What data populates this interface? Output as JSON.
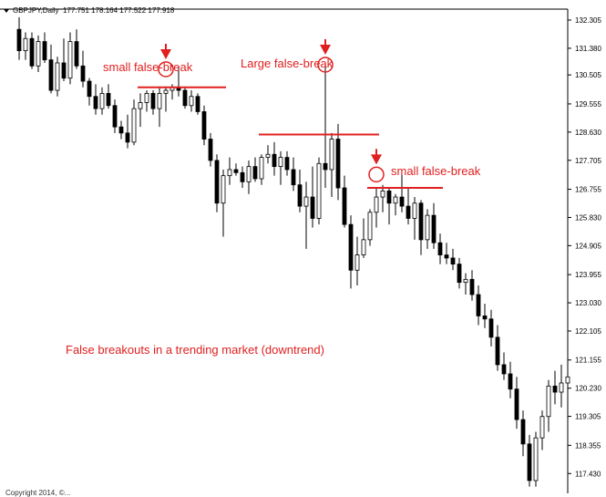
{
  "header": {
    "symbol": "GBPJPY,Daily",
    "ohlc": "177.751 178.164 177.522 177.918"
  },
  "annotations": {
    "small_false_break_1": "small false-break",
    "large_false_break": "Large false-break",
    "small_false_break_2": "small false-break",
    "caption": "False breakouts in a trending market (downtrend)"
  },
  "copyright": "Copyright 2014, ©...",
  "chart_data": {
    "type": "candlestick",
    "y_ticks": [
      "132.305",
      "131.380",
      "130.505",
      "129.555",
      "128.630",
      "127.705",
      "126.755",
      "125.830",
      "124.905",
      "123.955",
      "123.030",
      "122.105",
      "121.155",
      "120.230",
      "119.305",
      "118.355",
      "117.430"
    ],
    "ylim": [
      117.0,
      132.7
    ],
    "colors": {
      "annotation": "#e02020",
      "bull": "#ffffff",
      "bear": "#000000",
      "axis": "#000000"
    },
    "candles": [
      [
        132.0,
        132.4,
        131.0,
        131.3
      ],
      [
        131.3,
        131.9,
        131.0,
        131.7
      ],
      [
        131.7,
        131.9,
        130.7,
        130.8
      ],
      [
        130.8,
        131.8,
        130.6,
        131.6
      ],
      [
        131.6,
        131.9,
        130.9,
        131.0
      ],
      [
        131.0,
        131.5,
        129.9,
        130.0
      ],
      [
        130.0,
        131.1,
        129.8,
        130.9
      ],
      [
        130.9,
        131.7,
        130.3,
        130.4
      ],
      [
        130.4,
        131.9,
        130.2,
        131.6
      ],
      [
        131.6,
        132.0,
        130.7,
        130.8
      ],
      [
        130.8,
        131.3,
        130.1,
        130.3
      ],
      [
        130.3,
        130.4,
        129.5,
        129.8
      ],
      [
        129.8,
        130.2,
        129.2,
        129.4
      ],
      [
        129.4,
        130.1,
        129.2,
        129.9
      ],
      [
        129.9,
        130.2,
        129.4,
        129.5
      ],
      [
        129.5,
        129.7,
        128.6,
        128.8
      ],
      [
        128.8,
        129.0,
        128.4,
        128.6
      ],
      [
        128.6,
        129.2,
        128.1,
        128.3
      ],
      [
        128.3,
        129.7,
        128.2,
        129.4
      ],
      [
        129.4,
        129.9,
        128.8,
        129.6
      ],
      [
        129.6,
        130.0,
        129.3,
        129.9
      ],
      [
        129.9,
        130.0,
        129.2,
        129.4
      ],
      [
        129.4,
        130.1,
        128.8,
        129.9
      ],
      [
        129.9,
        130.1,
        129.3,
        130.0
      ],
      [
        130.0,
        130.2,
        129.7,
        130.1
      ],
      [
        130.1,
        130.8,
        129.8,
        130.0
      ],
      [
        130.0,
        130.1,
        129.4,
        129.5
      ],
      [
        129.5,
        130.0,
        129.3,
        129.8
      ],
      [
        129.8,
        129.9,
        129.2,
        129.3
      ],
      [
        129.3,
        129.5,
        128.2,
        128.4
      ],
      [
        128.4,
        128.6,
        127.5,
        127.7
      ],
      [
        127.7,
        127.9,
        126.0,
        126.3
      ],
      [
        126.3,
        127.4,
        125.2,
        127.2
      ],
      [
        127.2,
        127.8,
        126.9,
        127.4
      ],
      [
        127.4,
        127.6,
        127.2,
        127.3
      ],
      [
        127.3,
        127.5,
        126.8,
        127.0
      ],
      [
        127.0,
        127.7,
        126.6,
        127.5
      ],
      [
        127.5,
        127.8,
        127.0,
        127.1
      ],
      [
        127.1,
        127.9,
        126.9,
        127.8
      ],
      [
        127.8,
        128.2,
        127.6,
        127.9
      ],
      [
        127.9,
        128.3,
        127.2,
        127.5
      ],
      [
        127.5,
        128.0,
        126.9,
        127.8
      ],
      [
        127.8,
        128.0,
        127.2,
        127.4
      ],
      [
        127.4,
        127.8,
        126.7,
        126.9
      ],
      [
        126.9,
        127.4,
        126.0,
        126.2
      ],
      [
        126.2,
        127.0,
        124.8,
        126.5
      ],
      [
        126.5,
        127.5,
        125.5,
        125.8
      ],
      [
        125.8,
        127.8,
        125.6,
        127.6
      ],
      [
        127.6,
        130.9,
        126.8,
        127.4
      ],
      [
        127.4,
        128.6,
        126.5,
        128.4
      ],
      [
        128.4,
        128.9,
        126.4,
        126.8
      ],
      [
        126.8,
        127.2,
        125.5,
        125.6
      ],
      [
        125.6,
        125.9,
        123.5,
        124.1
      ],
      [
        124.1,
        125.2,
        123.6,
        124.6
      ],
      [
        124.6,
        125.8,
        124.5,
        125.1
      ],
      [
        125.1,
        126.1,
        124.9,
        126.0
      ],
      [
        126.0,
        126.8,
        125.5,
        126.5
      ],
      [
        126.5,
        126.9,
        126.0,
        126.7
      ],
      [
        126.7,
        126.8,
        125.6,
        126.3
      ],
      [
        126.3,
        126.6,
        125.9,
        126.5
      ],
      [
        126.5,
        127.3,
        126.0,
        126.2
      ],
      [
        126.2,
        126.8,
        125.6,
        125.8
      ],
      [
        125.8,
        126.5,
        125.1,
        126.3
      ],
      [
        126.3,
        126.4,
        124.6,
        125.1
      ],
      [
        125.1,
        126.1,
        124.8,
        125.9
      ],
      [
        125.9,
        126.3,
        124.8,
        125.0
      ],
      [
        125.0,
        125.3,
        124.3,
        124.6
      ],
      [
        124.6,
        125.0,
        124.3,
        124.5
      ],
      [
        124.5,
        124.8,
        124.1,
        124.3
      ],
      [
        124.3,
        124.5,
        123.5,
        123.7
      ],
      [
        123.7,
        124.0,
        123.3,
        123.8
      ],
      [
        123.8,
        124.1,
        123.1,
        123.3
      ],
      [
        123.3,
        123.6,
        122.3,
        122.6
      ],
      [
        122.6,
        123.0,
        122.2,
        122.5
      ],
      [
        122.5,
        122.8,
        121.6,
        121.9
      ],
      [
        121.9,
        122.3,
        120.8,
        121.0
      ],
      [
        121.0,
        121.4,
        120.5,
        120.7
      ],
      [
        120.7,
        121.1,
        119.9,
        120.2
      ],
      [
        120.2,
        120.6,
        118.9,
        119.2
      ],
      [
        119.2,
        119.5,
        118.0,
        118.4
      ],
      [
        118.4,
        118.7,
        117.0,
        117.2
      ],
      [
        117.2,
        118.8,
        117.0,
        118.6
      ],
      [
        118.6,
        119.5,
        118.2,
        119.3
      ],
      [
        119.3,
        120.5,
        118.8,
        120.3
      ],
      [
        120.3,
        120.8,
        119.7,
        120.1
      ],
      [
        120.1,
        121.0,
        119.6,
        120.4
      ],
      [
        120.4,
        121.0,
        120.0,
        120.6
      ]
    ],
    "resistance_levels": [
      {
        "y": 130.1,
        "from": 19,
        "to": 32
      },
      {
        "y": 128.55,
        "from": 38,
        "to": 56
      },
      {
        "y": 126.8,
        "from": 55,
        "to": 66
      }
    ]
  }
}
